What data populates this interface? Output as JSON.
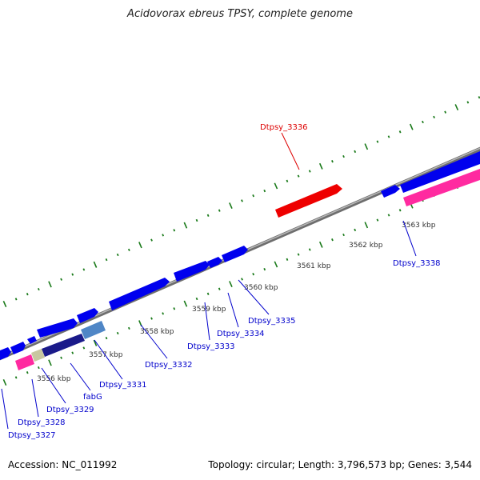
{
  "title": "Acidovorax ebreus TPSY, complete genome",
  "footer": {
    "accession": "Accession: NC_011992",
    "topology": "Topology: circular; Length: 3,796,573 bp; Genes: 3,544"
  },
  "colors": {
    "backbone": "#808080",
    "gene_blue": "#0000ee",
    "gene_red": "#ee0000",
    "gene_pink": "#ff2aa0",
    "gene_olive": "#c8c8a0",
    "gene_navy": "#1a1a8a",
    "gene_steel": "#4f86c6",
    "tick": "#1a7a1a",
    "label_blue": "#0000cc",
    "label_red": "#dd0000",
    "kbp_text": "#333333"
  },
  "scale_labels": [
    "3556 kbp",
    "3557 kbp",
    "3558 kbp",
    "3559 kbp",
    "3560 kbp",
    "3561 kbp",
    "3562 kbp",
    "3563 kbp"
  ],
  "gene_labels": [
    {
      "name": "Dtpsy_3336",
      "color": "red"
    },
    {
      "name": "Dtpsy_3338",
      "color": "blue"
    },
    {
      "name": "Dtpsy_3335",
      "color": "blue"
    },
    {
      "name": "Dtpsy_3334",
      "color": "blue"
    },
    {
      "name": "Dtpsy_3333",
      "color": "blue"
    },
    {
      "name": "Dtpsy_3332",
      "color": "blue"
    },
    {
      "name": "Dtpsy_3331",
      "color": "blue"
    },
    {
      "name": "fabG",
      "color": "blue"
    },
    {
      "name": "Dtpsy_3329",
      "color": "blue"
    },
    {
      "name": "Dtpsy_3328",
      "color": "blue"
    },
    {
      "name": "Dtpsy_3327",
      "color": "blue"
    }
  ]
}
